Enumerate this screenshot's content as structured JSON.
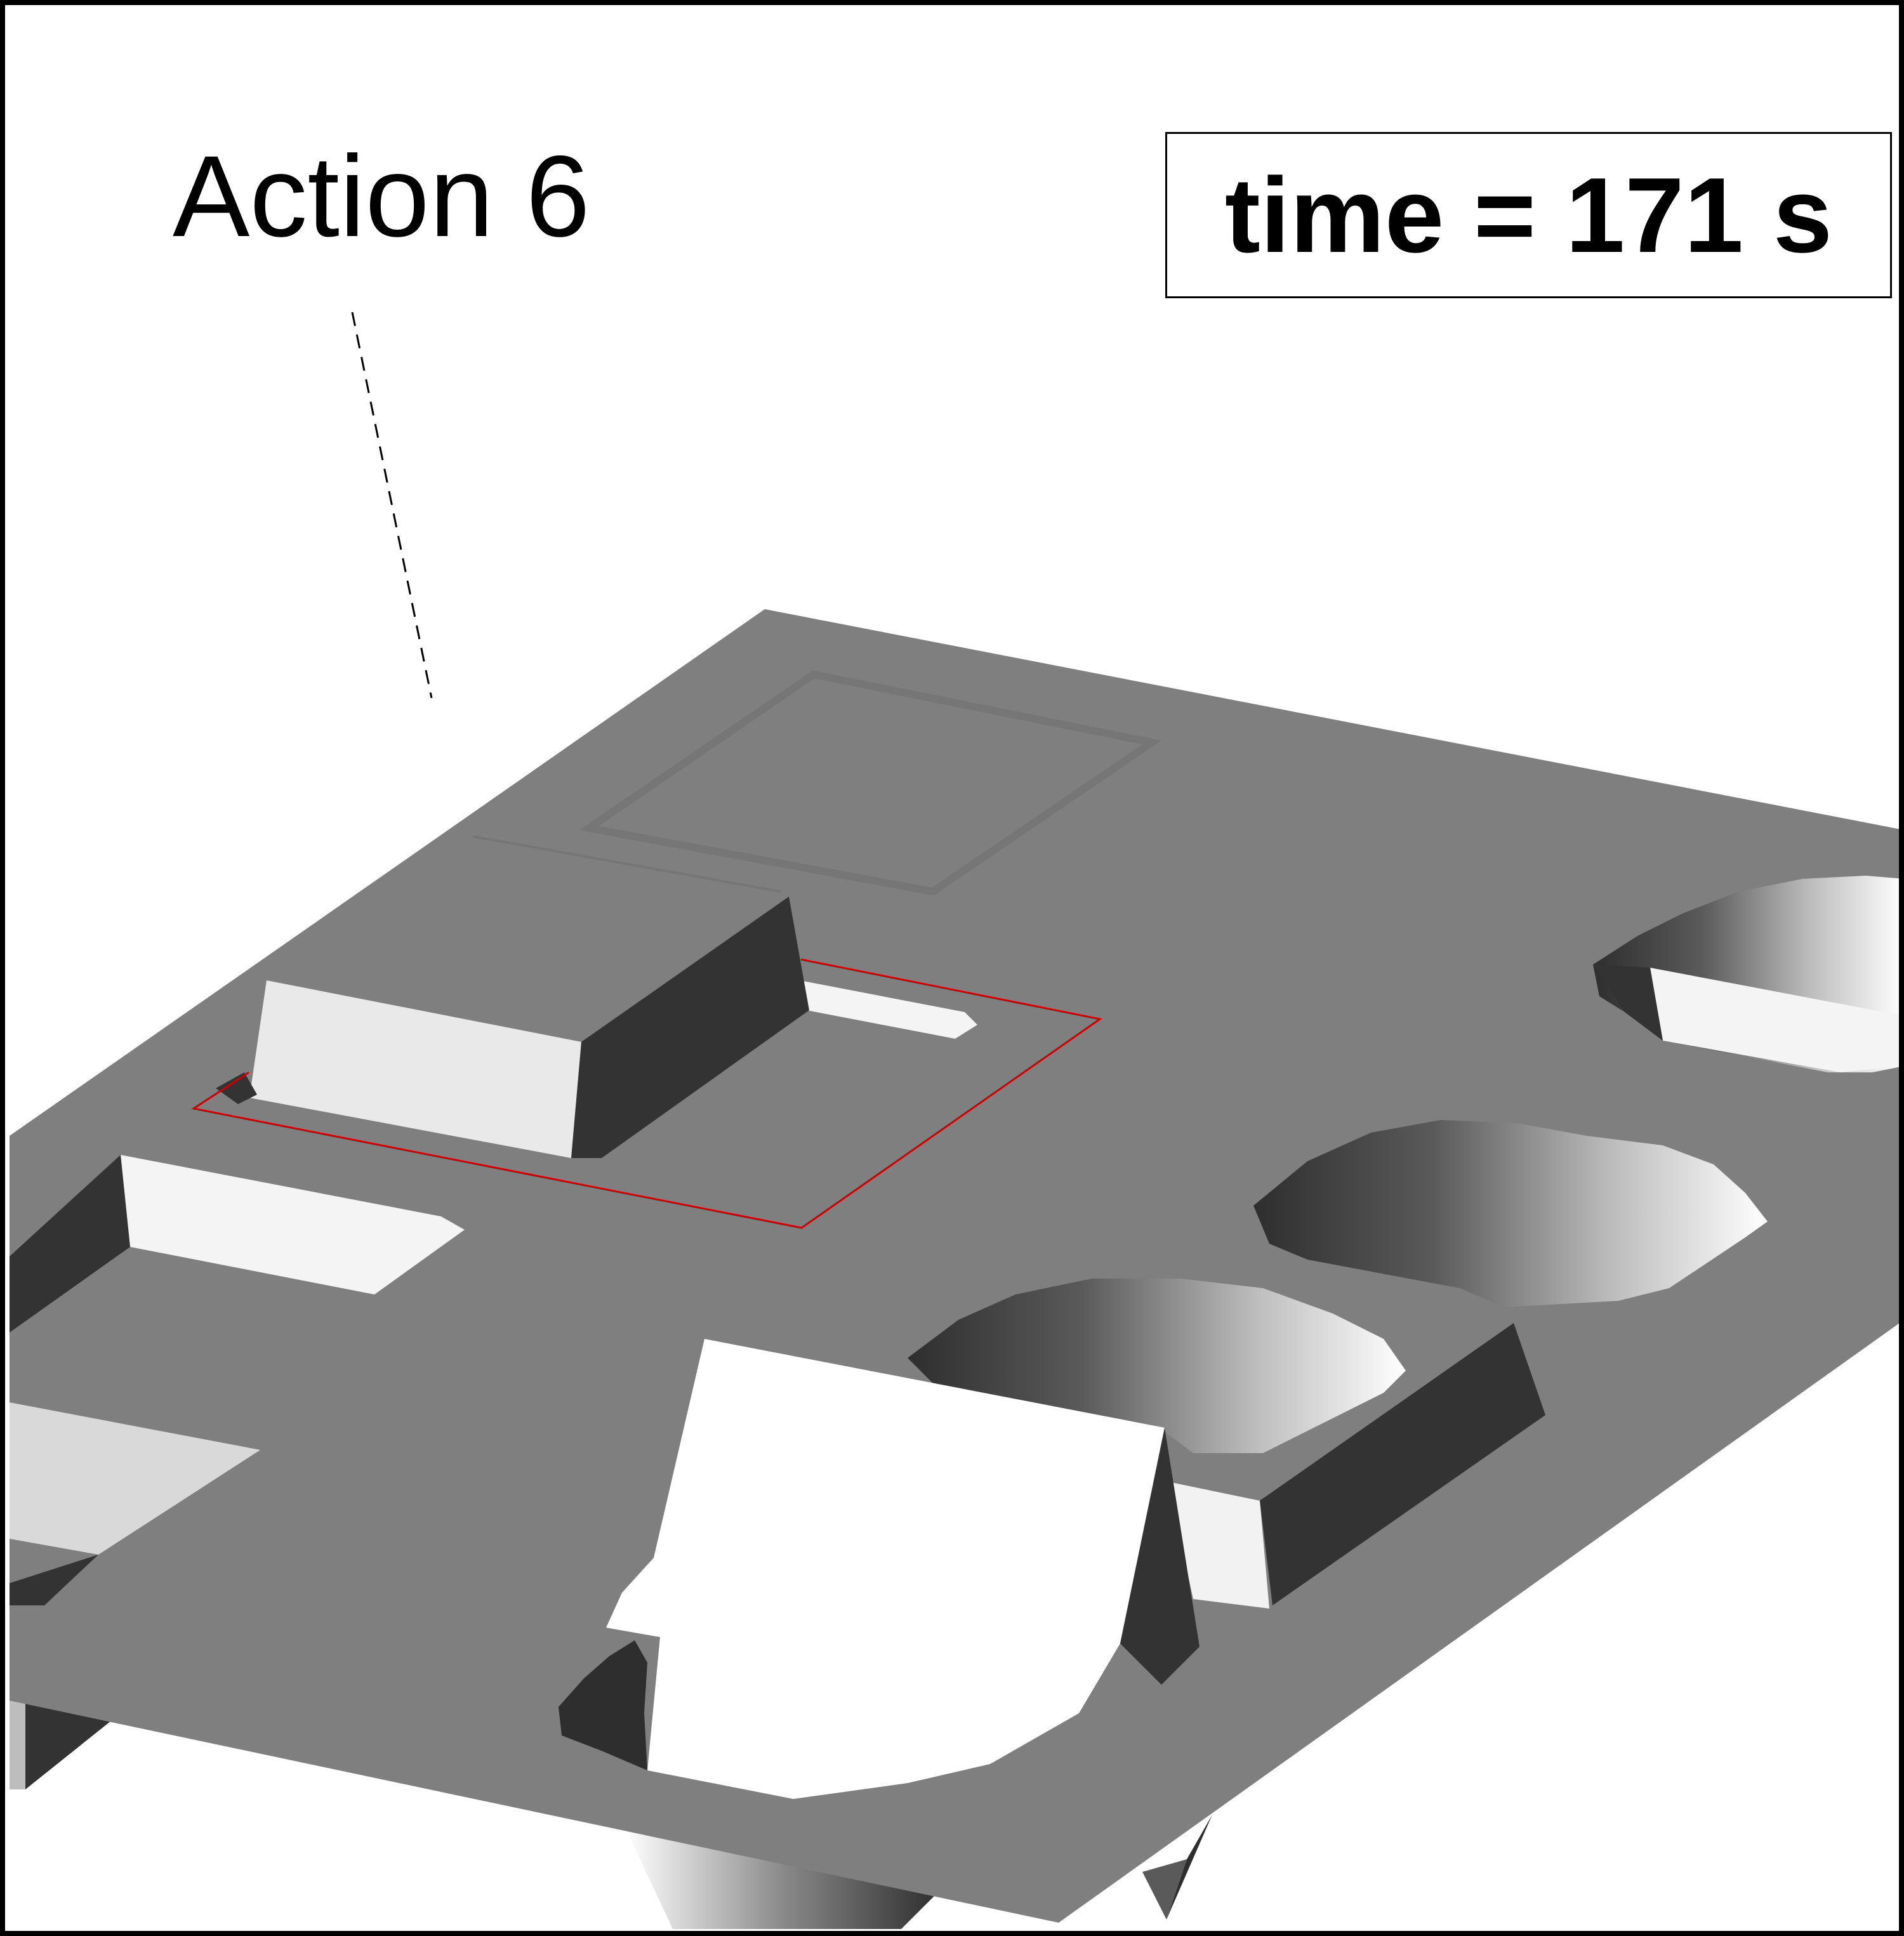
{
  "annotation": {
    "action_label": "Action 6"
  },
  "timer": {
    "label": "time = 171 s"
  },
  "colors": {
    "plate": "#7f7f7f",
    "block_light": "#ebebeb",
    "block_dark": "#333333",
    "highlight_outline": "#cc0000",
    "background": "#ffffff"
  }
}
